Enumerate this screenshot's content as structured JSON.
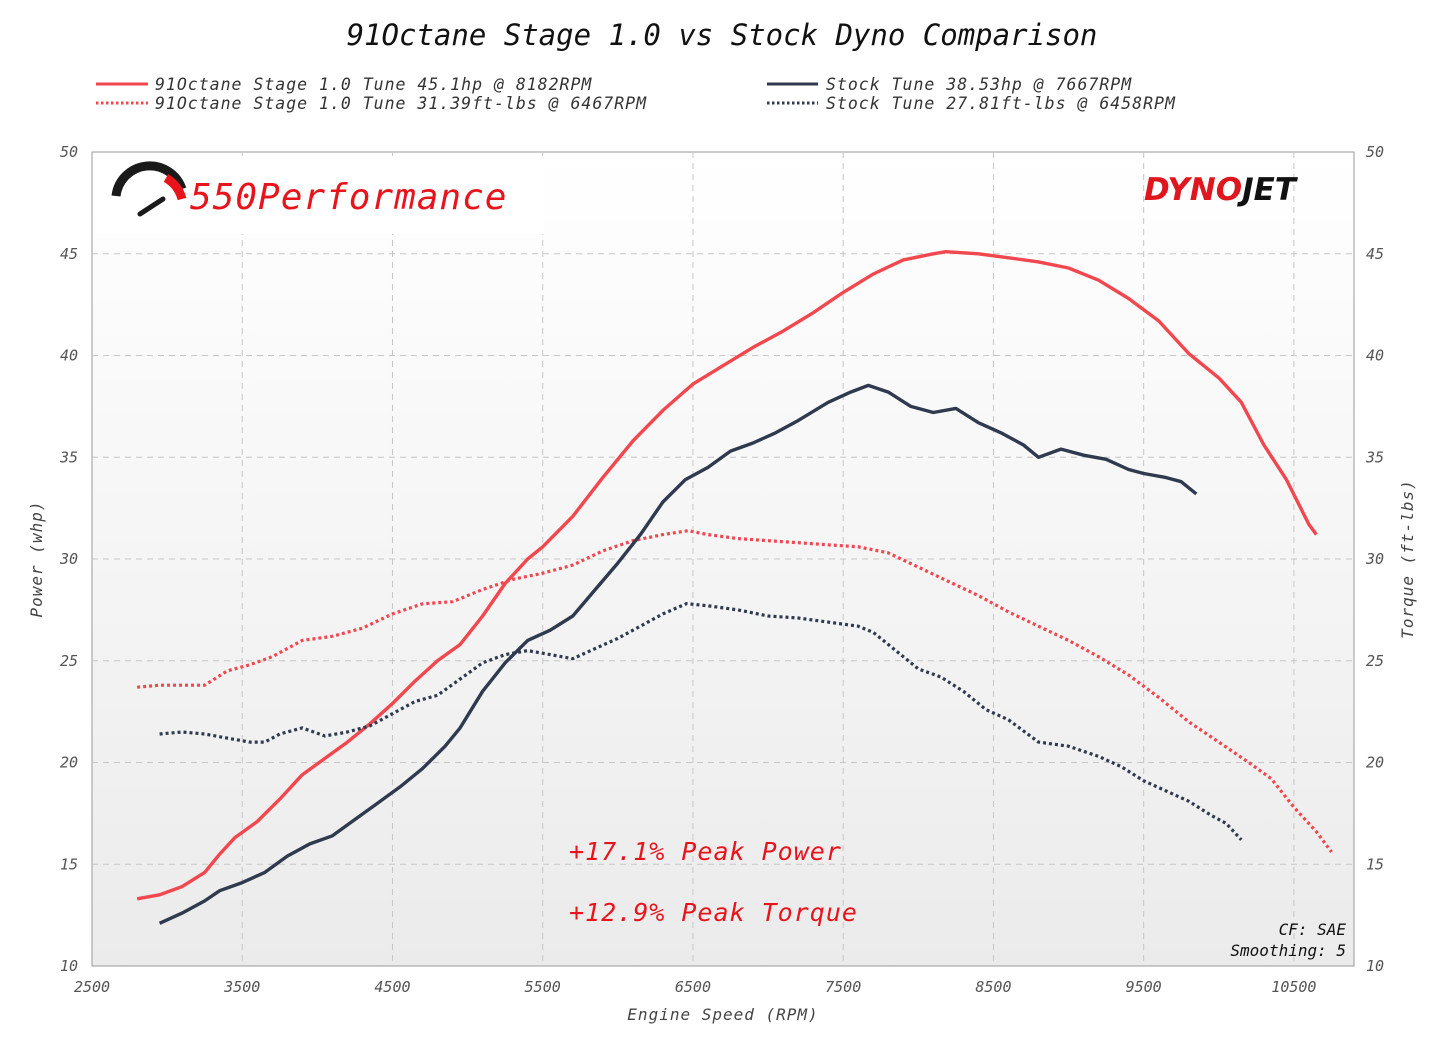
{
  "chart_data": {
    "type": "line",
    "title": "91Octane Stage 1.0 vs Stock Dyno Comparison",
    "xlabel": "Engine Speed (RPM)",
    "ylabel": "Power (whp)",
    "y2label": "Torque (ft-lbs)",
    "xlim": [
      2500,
      10900
    ],
    "ylim": [
      10,
      50
    ],
    "y2lim": [
      10,
      50
    ],
    "x_ticks": [
      "2500",
      "3500",
      "4500",
      "5500",
      "6500",
      "7500",
      "8500",
      "9500",
      "10500"
    ],
    "y_ticks": [
      "50",
      "45",
      "40",
      "35",
      "30",
      "25",
      "20",
      "15",
      "10"
    ],
    "y2_ticks": [
      "50",
      "45",
      "40",
      "35",
      "30",
      "25",
      "20",
      "15",
      "10"
    ],
    "grid": true,
    "legend_position": "top",
    "series": [
      {
        "name": "91Octane Stage 1.0 Tune 45.1hp @ 8182RPM",
        "color": "#f0484e",
        "style": "solid",
        "axis": "power",
        "points": [
          [
            2800,
            13.3
          ],
          [
            2950,
            13.5
          ],
          [
            3100,
            13.9
          ],
          [
            3250,
            14.6
          ],
          [
            3350,
            15.5
          ],
          [
            3450,
            16.3
          ],
          [
            3600,
            17.1
          ],
          [
            3750,
            18.2
          ],
          [
            3900,
            19.4
          ],
          [
            4050,
            20.2
          ],
          [
            4200,
            21
          ],
          [
            4350,
            21.9
          ],
          [
            4500,
            22.9
          ],
          [
            4650,
            24
          ],
          [
            4800,
            25
          ],
          [
            4950,
            25.8
          ],
          [
            5100,
            27.2
          ],
          [
            5250,
            28.8
          ],
          [
            5400,
            30
          ],
          [
            5500,
            30.6
          ],
          [
            5700,
            32.1
          ],
          [
            5900,
            34
          ],
          [
            6100,
            35.8
          ],
          [
            6300,
            37.3
          ],
          [
            6500,
            38.6
          ],
          [
            6700,
            39.5
          ],
          [
            6900,
            40.4
          ],
          [
            7100,
            41.2
          ],
          [
            7300,
            42.1
          ],
          [
            7500,
            43.1
          ],
          [
            7700,
            44
          ],
          [
            7900,
            44.7
          ],
          [
            8100,
            45
          ],
          [
            8182,
            45.1
          ],
          [
            8400,
            45
          ],
          [
            8600,
            44.8
          ],
          [
            8800,
            44.6
          ],
          [
            9000,
            44.3
          ],
          [
            9200,
            43.7
          ],
          [
            9400,
            42.8
          ],
          [
            9600,
            41.7
          ],
          [
            9800,
            40.1
          ],
          [
            10000,
            38.9
          ],
          [
            10150,
            37.7
          ],
          [
            10300,
            35.6
          ],
          [
            10450,
            33.9
          ],
          [
            10600,
            31.7
          ],
          [
            10650,
            31.2
          ]
        ]
      },
      {
        "name": "91Octane Stage 1.0 Tune 31.39ft-lbs @ 6467RPM",
        "color": "#f0484e",
        "style": "dotted",
        "axis": "torque",
        "points": [
          [
            2800,
            23.7
          ],
          [
            2950,
            23.8
          ],
          [
            3100,
            23.8
          ],
          [
            3250,
            23.8
          ],
          [
            3400,
            24.5
          ],
          [
            3550,
            24.8
          ],
          [
            3700,
            25.2
          ],
          [
            3900,
            26
          ],
          [
            4100,
            26.2
          ],
          [
            4300,
            26.6
          ],
          [
            4500,
            27.3
          ],
          [
            4700,
            27.8
          ],
          [
            4900,
            27.9
          ],
          [
            5100,
            28.5
          ],
          [
            5300,
            29
          ],
          [
            5500,
            29.3
          ],
          [
            5700,
            29.7
          ],
          [
            5900,
            30.4
          ],
          [
            6100,
            30.9
          ],
          [
            6300,
            31.2
          ],
          [
            6467,
            31.39
          ],
          [
            6600,
            31.2
          ],
          [
            6800,
            31
          ],
          [
            7000,
            30.9
          ],
          [
            7200,
            30.8
          ],
          [
            7400,
            30.7
          ],
          [
            7600,
            30.6
          ],
          [
            7800,
            30.3
          ],
          [
            8000,
            29.6
          ],
          [
            8200,
            28.9
          ],
          [
            8400,
            28.2
          ],
          [
            8600,
            27.4
          ],
          [
            8800,
            26.7
          ],
          [
            9000,
            26
          ],
          [
            9200,
            25.2
          ],
          [
            9400,
            24.3
          ],
          [
            9600,
            23.2
          ],
          [
            9800,
            22
          ],
          [
            10000,
            21
          ],
          [
            10200,
            20
          ],
          [
            10350,
            19.2
          ],
          [
            10500,
            17.8
          ],
          [
            10650,
            16.6
          ],
          [
            10750,
            15.6
          ]
        ]
      },
      {
        "name": "Stock Tune 38.53hp @ 7667RPM",
        "color": "#2f3a4f",
        "style": "solid",
        "axis": "power",
        "points": [
          [
            2950,
            12.1
          ],
          [
            3100,
            12.6
          ],
          [
            3250,
            13.2
          ],
          [
            3350,
            13.7
          ],
          [
            3500,
            14.1
          ],
          [
            3650,
            14.6
          ],
          [
            3800,
            15.4
          ],
          [
            3950,
            16
          ],
          [
            4100,
            16.4
          ],
          [
            4250,
            17.2
          ],
          [
            4400,
            18
          ],
          [
            4550,
            18.8
          ],
          [
            4700,
            19.7
          ],
          [
            4850,
            20.8
          ],
          [
            4950,
            21.7
          ],
          [
            5100,
            23.5
          ],
          [
            5250,
            24.9
          ],
          [
            5400,
            26
          ],
          [
            5550,
            26.5
          ],
          [
            5700,
            27.2
          ],
          [
            5850,
            28.5
          ],
          [
            6000,
            29.8
          ],
          [
            6150,
            31.2
          ],
          [
            6300,
            32.8
          ],
          [
            6450,
            33.9
          ],
          [
            6600,
            34.5
          ],
          [
            6750,
            35.3
          ],
          [
            6900,
            35.7
          ],
          [
            7050,
            36.2
          ],
          [
            7200,
            36.8
          ],
          [
            7400,
            37.7
          ],
          [
            7550,
            38.2
          ],
          [
            7667,
            38.53
          ],
          [
            7800,
            38.2
          ],
          [
            7950,
            37.5
          ],
          [
            8100,
            37.2
          ],
          [
            8250,
            37.4
          ],
          [
            8400,
            36.7
          ],
          [
            8550,
            36.2
          ],
          [
            8700,
            35.6
          ],
          [
            8800,
            35
          ],
          [
            8950,
            35.4
          ],
          [
            9100,
            35.1
          ],
          [
            9250,
            34.9
          ],
          [
            9400,
            34.4
          ],
          [
            9500,
            34.2
          ],
          [
            9650,
            34
          ],
          [
            9750,
            33.8
          ],
          [
            9850,
            33.2
          ]
        ]
      },
      {
        "name": "Stock Tune 27.81ft-lbs @ 6458RPM",
        "color": "#2f3a4f",
        "style": "dotted",
        "axis": "torque",
        "points": [
          [
            2950,
            21.4
          ],
          [
            3100,
            21.5
          ],
          [
            3250,
            21.4
          ],
          [
            3400,
            21.2
          ],
          [
            3550,
            21
          ],
          [
            3650,
            21
          ],
          [
            3750,
            21.4
          ],
          [
            3900,
            21.7
          ],
          [
            4050,
            21.3
          ],
          [
            4200,
            21.5
          ],
          [
            4350,
            21.8
          ],
          [
            4500,
            22.4
          ],
          [
            4650,
            23
          ],
          [
            4800,
            23.3
          ],
          [
            4950,
            24.1
          ],
          [
            5100,
            24.9
          ],
          [
            5250,
            25.3
          ],
          [
            5400,
            25.5
          ],
          [
            5550,
            25.3
          ],
          [
            5700,
            25.1
          ],
          [
            5850,
            25.6
          ],
          [
            6000,
            26.1
          ],
          [
            6150,
            26.7
          ],
          [
            6300,
            27.3
          ],
          [
            6458,
            27.81
          ],
          [
            6600,
            27.7
          ],
          [
            6800,
            27.5
          ],
          [
            7000,
            27.2
          ],
          [
            7200,
            27.1
          ],
          [
            7400,
            26.9
          ],
          [
            7600,
            26.7
          ],
          [
            7700,
            26.4
          ],
          [
            7800,
            25.8
          ],
          [
            8000,
            24.6
          ],
          [
            8150,
            24.2
          ],
          [
            8300,
            23.5
          ],
          [
            8450,
            22.6
          ],
          [
            8600,
            22.1
          ],
          [
            8800,
            21
          ],
          [
            9000,
            20.8
          ],
          [
            9200,
            20.3
          ],
          [
            9350,
            19.8
          ],
          [
            9500,
            19.1
          ],
          [
            9650,
            18.6
          ],
          [
            9800,
            18.1
          ],
          [
            9950,
            17.4
          ],
          [
            10050,
            17
          ],
          [
            10150,
            16.2
          ]
        ]
      }
    ],
    "annotations": [
      "+17.1% Peak Power",
      "+12.9% Peak Torque"
    ],
    "footer_lines": [
      "CF: SAE",
      "Smoothing: 5"
    ]
  },
  "logos": {
    "left_text": "550Performance",
    "right_text_a": "DYNO",
    "right_text_b": "JET"
  },
  "colors": {
    "tuned": "#f0484e",
    "stock": "#2f3a4f",
    "annotation": "#e8141c",
    "grid": "#c6c6c6"
  }
}
